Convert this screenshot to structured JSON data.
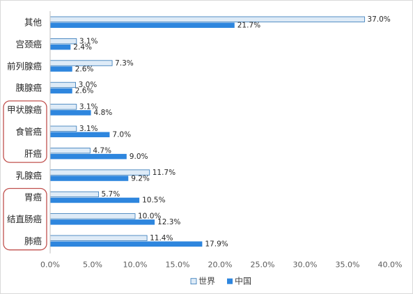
{
  "chart_data": {
    "type": "bar",
    "orientation": "horizontal",
    "categories": [
      "其他",
      "宫颈癌",
      "前列腺癌",
      "胰腺癌",
      "甲状腺癌",
      "食管癌",
      "肝癌",
      "乳腺癌",
      "胃癌",
      "结直肠癌",
      "肺癌"
    ],
    "series": [
      {
        "name": "世界",
        "color": "#deebf7",
        "stroke": "#2e75b6",
        "values": [
          37.0,
          3.1,
          7.3,
          3.0,
          3.1,
          3.1,
          4.7,
          11.7,
          5.7,
          10.0,
          11.4
        ],
        "labels": [
          "37.0%",
          "3.1%",
          "7.3%",
          "3.0%",
          "3.1%",
          "3.1%",
          "4.7%",
          "11.7%",
          "5.7%",
          "10.0%",
          "11.4%"
        ]
      },
      {
        "name": "中国",
        "color": "#2e86de",
        "stroke": "#2e86de",
        "values": [
          21.7,
          2.4,
          2.6,
          2.6,
          4.8,
          7.0,
          9.0,
          9.2,
          10.5,
          12.3,
          17.9
        ],
        "labels": [
          "21.7%",
          "2.4%",
          "2.6%",
          "2.6%",
          "4.8%",
          "7.0%",
          "9.0%",
          "9.2%",
          "10.5%",
          "12.3%",
          "17.9%"
        ]
      }
    ],
    "xlim": [
      0,
      40
    ],
    "x_ticks": [
      0,
      5,
      10,
      15,
      20,
      25,
      30,
      35,
      40
    ],
    "x_tick_labels": [
      "0.0%",
      "5.0%",
      "10.0%",
      "15.0%",
      "20.0%",
      "25.0%",
      "30.0%",
      "35.0%",
      "40.0%"
    ],
    "grid": false,
    "legend_position": "bottom",
    "highlight_groups": [
      [
        "甲状腺癌",
        "食管癌",
        "肝癌"
      ],
      [
        "胃癌",
        "结直肠癌",
        "肺癌"
      ]
    ],
    "highlight_color": "#c0504d"
  }
}
